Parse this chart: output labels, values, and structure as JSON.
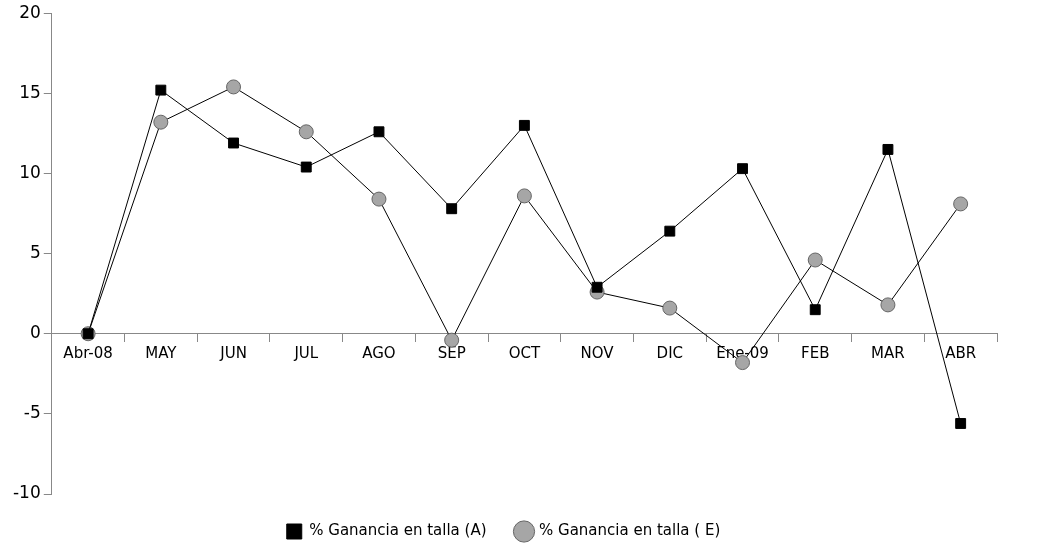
{
  "chart_data": {
    "type": "line",
    "categories": [
      "Abr-08",
      "MAY",
      "JUN",
      "JUL",
      "AGO",
      "SEP",
      "OCT",
      "NOV",
      "DIC",
      "Ene-09",
      "FEB",
      "MAR",
      "ABR"
    ],
    "series": [
      {
        "name": "% Ganancia en talla ( E)",
        "color": "#a6a6a6",
        "marker": "circle",
        "values": [
          0,
          13.2,
          15.4,
          12.6,
          8.4,
          -0.4,
          8.6,
          2.6,
          1.6,
          -1.8,
          4.6,
          1.8,
          8.1
        ]
      },
      {
        "name": "% Ganancia en talla (A)",
        "color": "#000000",
        "marker": "square",
        "values": [
          0,
          15.2,
          11.9,
          10.4,
          12.6,
          7.8,
          13.0,
          2.9,
          6.4,
          10.3,
          1.5,
          11.5,
          -5.6
        ]
      }
    ],
    "ylim": [
      -10,
      20
    ],
    "yticks": [
      -10,
      -5,
      0,
      5,
      10,
      15,
      20
    ],
    "grid": false,
    "legend": "bottom",
    "line_style": "solid"
  }
}
